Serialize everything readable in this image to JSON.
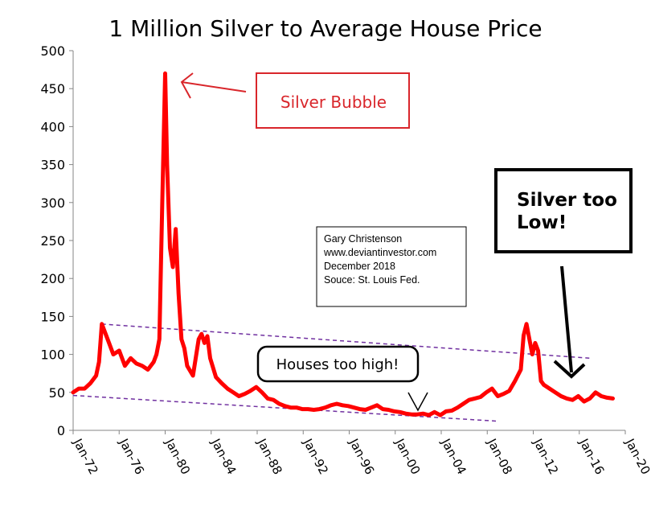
{
  "chart_data": {
    "type": "line",
    "title": "1 Million Silver to Average House Price",
    "xlabel": "",
    "ylabel": "",
    "ylim": [
      0,
      500
    ],
    "y_ticks": [
      "0",
      "50",
      "100",
      "150",
      "200",
      "250",
      "300",
      "350",
      "400",
      "450",
      "500"
    ],
    "x_ticks": [
      "Jan-72",
      "Jan-76",
      "Jan-80",
      "Jan-84",
      "Jan-88",
      "Jan-92",
      "Jan-96",
      "Jan-00",
      "Jan-04",
      "Jan-08",
      "Jan-12",
      "Jan-16",
      "Jan-20"
    ],
    "grid": false,
    "legend": "none",
    "series": [
      {
        "color": "#ff0000",
        "x": [
          "1972-01",
          "1972-07",
          "1973-01",
          "1973-07",
          "1974-01",
          "1974-04",
          "1974-07",
          "1975-01",
          "1975-07",
          "1976-01",
          "1976-07",
          "1977-01",
          "1977-07",
          "1978-01",
          "1978-07",
          "1979-01",
          "1979-04",
          "1979-07",
          "1979-10",
          "1980-01",
          "1980-03",
          "1980-06",
          "1980-09",
          "1980-12",
          "1981-03",
          "1981-06",
          "1981-09",
          "1981-12",
          "1982-06",
          "1982-12",
          "1983-03",
          "1983-06",
          "1983-09",
          "1983-12",
          "1984-06",
          "1984-12",
          "1985-06",
          "1985-12",
          "1986-06",
          "1986-12",
          "1987-06",
          "1987-12",
          "1988-06",
          "1988-12",
          "1989-06",
          "1989-12",
          "1990-06",
          "1990-12",
          "1991-06",
          "1991-12",
          "1992-06",
          "1992-12",
          "1993-06",
          "1993-12",
          "1994-06",
          "1994-12",
          "1995-06",
          "1995-12",
          "1996-06",
          "1996-12",
          "1997-06",
          "1997-12",
          "1998-06",
          "1998-12",
          "1999-06",
          "1999-12",
          "2000-06",
          "2000-12",
          "2001-06",
          "2001-12",
          "2002-06",
          "2002-12",
          "2003-06",
          "2003-12",
          "2004-06",
          "2004-12",
          "2005-06",
          "2005-12",
          "2006-06",
          "2006-12",
          "2007-06",
          "2007-12",
          "2008-06",
          "2008-12",
          "2009-06",
          "2009-12",
          "2010-06",
          "2010-12",
          "2011-03",
          "2011-06",
          "2011-09",
          "2011-12",
          "2012-03",
          "2012-06",
          "2012-09",
          "2012-12",
          "2013-06",
          "2013-12",
          "2014-06",
          "2014-12",
          "2015-06",
          "2015-12",
          "2016-06",
          "2016-12",
          "2017-06",
          "2017-12",
          "2018-06",
          "2018-12"
        ],
        "values": [
          50,
          55,
          55,
          62,
          72,
          90,
          140,
          120,
          100,
          105,
          85,
          95,
          88,
          85,
          80,
          90,
          100,
          120,
          300,
          470,
          350,
          240,
          215,
          265,
          180,
          120,
          108,
          85,
          72,
          120,
          127,
          115,
          124,
          95,
          70,
          62,
          55,
          50,
          45,
          48,
          52,
          57,
          50,
          42,
          40,
          35,
          32,
          30,
          30,
          28,
          28,
          27,
          28,
          30,
          33,
          35,
          33,
          32,
          30,
          28,
          27,
          30,
          33,
          28,
          27,
          25,
          24,
          22,
          21,
          21,
          22,
          20,
          24,
          20,
          25,
          26,
          30,
          35,
          40,
          42,
          44,
          50,
          55,
          45,
          48,
          52,
          65,
          80,
          125,
          140,
          120,
          100,
          115,
          105,
          65,
          60,
          55,
          50,
          45,
          42,
          40,
          45,
          38,
          42,
          50,
          45,
          43,
          42
        ],
        "x_is_dates": true
      }
    ],
    "trendlines": [
      {
        "color": "#7030a0",
        "style": "dashed",
        "x": [
          "1974-07",
          "2016-12"
        ],
        "values": [
          140,
          95
        ]
      },
      {
        "color": "#7030a0",
        "style": "dashed",
        "x": [
          "1972-01",
          "2009-01"
        ],
        "values": [
          46,
          12
        ]
      }
    ],
    "annotations": {
      "silver_bubble": "Silver Bubble",
      "credit_lines": [
        "Gary Christenson",
        "www.deviantinvestor.com",
        "December 2018",
        "Souce: St. Louis Fed."
      ],
      "houses_too_high": "Houses too high!",
      "silver_too_low": [
        "Silver too",
        "Low!"
      ]
    }
  }
}
